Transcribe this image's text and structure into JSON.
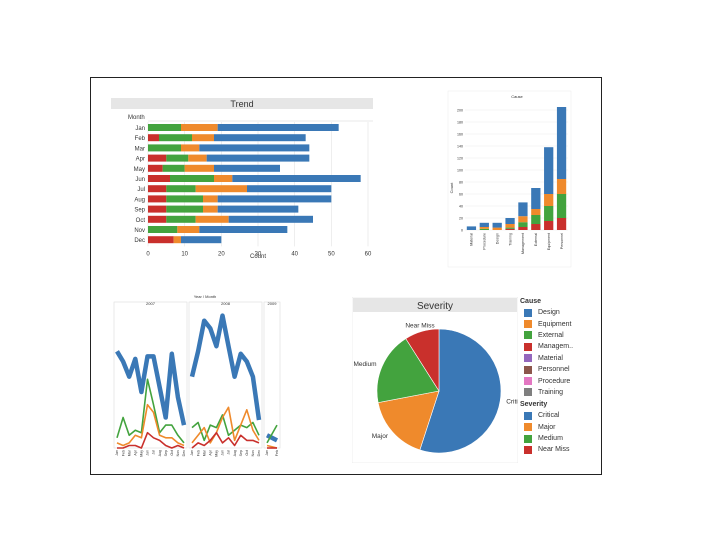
{
  "colors": {
    "design": "#3a78b6",
    "equipment": "#ef8a2c",
    "external": "#43a33e",
    "management": "#c9302c",
    "material": "#9467bd",
    "personnel": "#8c564b",
    "procedure": "#e377c2",
    "training": "#7f7f7f"
  },
  "legend": {
    "cause_title": "Cause",
    "cause_items": [
      {
        "label": "Design",
        "color": "#3a78b6"
      },
      {
        "label": "Equipment",
        "color": "#ef8a2c"
      },
      {
        "label": "External",
        "color": "#43a33e"
      },
      {
        "label": "Managem..",
        "color": "#c9302c"
      },
      {
        "label": "Material",
        "color": "#9467bd"
      },
      {
        "label": "Personnel",
        "color": "#8c564b"
      },
      {
        "label": "Procedure",
        "color": "#e377c2"
      },
      {
        "label": "Training",
        "color": "#7f7f7f"
      }
    ],
    "severity_title": "Severity",
    "severity_items": [
      {
        "label": "Critical",
        "color": "#3a78b6"
      },
      {
        "label": "Major",
        "color": "#ef8a2c"
      },
      {
        "label": "Medium",
        "color": "#43a33e"
      },
      {
        "label": "Near Miss",
        "color": "#c9302c"
      }
    ]
  },
  "chart_data": [
    {
      "type": "bar",
      "orientation": "horizontal",
      "stacked": true,
      "title": "Trend",
      "row_header": "Month",
      "xlabel": "Count",
      "xlim": [
        0,
        60
      ],
      "xticks": [
        0,
        10,
        20,
        30,
        40,
        50,
        60
      ],
      "categories": [
        "Jan",
        "Feb",
        "Mar",
        "Apr",
        "May",
        "Jun",
        "Jul",
        "Aug",
        "Sep",
        "Oct",
        "Nov",
        "Dec"
      ],
      "series": [
        {
          "color": "#c9302c",
          "values": [
            0,
            3,
            0,
            5,
            4,
            6,
            5,
            5,
            5,
            5,
            0,
            7
          ]
        },
        {
          "color": "#43a33e",
          "values": [
            9,
            9,
            9,
            6,
            6,
            12,
            8,
            10,
            10,
            8,
            8,
            0
          ]
        },
        {
          "color": "#ef8a2c",
          "values": [
            10,
            6,
            5,
            5,
            8,
            5,
            14,
            4,
            4,
            9,
            6,
            2
          ]
        },
        {
          "color": "#3a78b6",
          "values": [
            33,
            25,
            30,
            28,
            18,
            35,
            23,
            31,
            22,
            23,
            24,
            11
          ]
        }
      ]
    },
    {
      "type": "bar",
      "stacked": true,
      "title": "Cause",
      "ylabel": "Count",
      "ylim": [
        0,
        210
      ],
      "yticks": [
        0,
        20,
        40,
        60,
        80,
        100,
        120,
        140,
        160,
        180,
        200
      ],
      "categories": [
        "Material",
        "Procedure",
        "Design",
        "Training",
        "Management",
        "External",
        "Equipment",
        "Personnel"
      ],
      "series": [
        {
          "color": "#c9302c",
          "values": [
            0,
            0,
            0,
            2,
            5,
            10,
            15,
            20
          ]
        },
        {
          "color": "#43a33e",
          "values": [
            0,
            2,
            0,
            2,
            8,
            15,
            25,
            40
          ]
        },
        {
          "color": "#ef8a2c",
          "values": [
            0,
            3,
            4,
            6,
            10,
            10,
            20,
            25
          ]
        },
        {
          "color": "#3a78b6",
          "values": [
            6,
            7,
            8,
            10,
            23,
            35,
            78,
            120
          ]
        }
      ]
    },
    {
      "type": "line",
      "title": "Year / Month",
      "groups": [
        "2007",
        "2008",
        "2009"
      ],
      "months": [
        "Jan",
        "Feb",
        "Mar",
        "Apr",
        "May",
        "Jun",
        "Jul",
        "Aug",
        "Sep",
        "Oct",
        "Nov",
        "Dec"
      ],
      "series": [
        {
          "color": "#3a78b6",
          "width": 4.5,
          "values": [
            [
              38,
              34,
              28,
              35,
              22,
              36,
              36,
              24,
              12,
              37,
              20,
              9
            ],
            [
              28,
              38,
              50,
              47,
              40,
              52,
              40,
              28,
              37,
              34,
              28,
              11
            ],
            [
              5,
              3
            ]
          ]
        },
        {
          "color": "#43a33e",
          "width": 1.6,
          "values": [
            [
              4,
              12,
              5,
              7,
              6,
              27,
              17,
              6,
              9,
              9,
              5,
              2
            ],
            [
              8,
              10,
              3,
              9,
              8,
              13,
              5,
              7,
              9,
              8,
              10,
              5
            ],
            [
              2,
              9
            ]
          ]
        },
        {
          "color": "#ef8a2c",
          "width": 1.6,
          "values": [
            [
              2,
              1,
              2,
              5,
              4,
              17,
              14,
              5,
              4,
              4,
              2,
              1
            ],
            [
              2,
              5,
              8,
              2,
              6,
              12,
              16,
              3,
              9,
              15,
              7,
              3
            ],
            [
              1,
              0
            ]
          ]
        },
        {
          "color": "#c9302c",
          "width": 1.6,
          "values": [
            [
              0,
              0,
              1,
              1,
              0,
              6,
              4,
              3,
              1,
              0,
              1,
              0
            ],
            [
              0,
              2,
              1,
              3,
              6,
              2,
              4,
              1,
              5,
              3,
              3,
              2
            ],
            [
              0,
              0
            ]
          ]
        }
      ]
    },
    {
      "type": "pie",
      "title": "Severity",
      "slices": [
        {
          "label": "Critical",
          "value": 55,
          "color": "#3a78b6"
        },
        {
          "label": "Major",
          "value": 17,
          "color": "#ef8a2c"
        },
        {
          "label": "Medium",
          "value": 19,
          "color": "#43a33e"
        },
        {
          "label": "Near Miss",
          "value": 9,
          "color": "#c9302c"
        }
      ]
    }
  ]
}
